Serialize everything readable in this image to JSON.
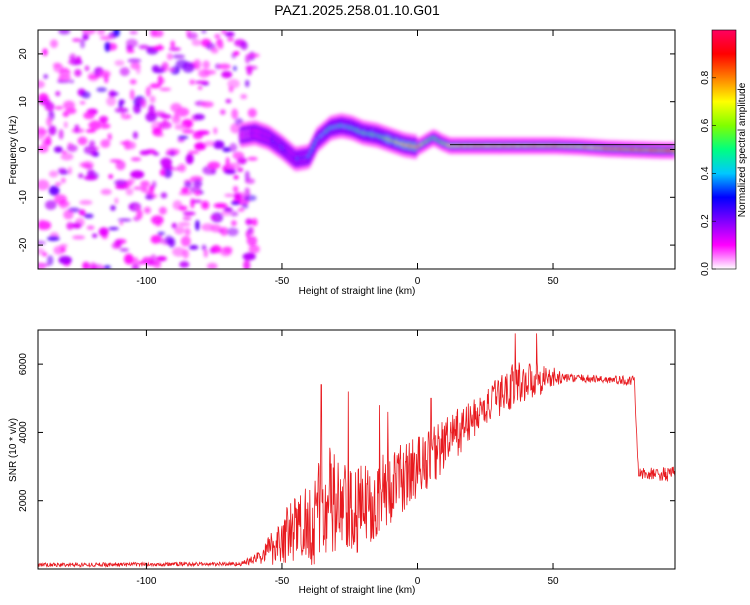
{
  "title": "PAZ1.2025.258.01.10.G01",
  "chart_data": [
    {
      "type": "heatmap",
      "xlabel": "Height of straight line (km)",
      "ylabel": "Frequency (Hz)",
      "xlim": [
        -140,
        95
      ],
      "ylim": [
        -25,
        25
      ],
      "xticks": [
        -100,
        -50,
        0,
        50
      ],
      "xtick_labels": [
        "-100",
        "-50",
        "0",
        "50"
      ],
      "yticks": [
        -20,
        -10,
        0,
        10,
        20
      ],
      "ytick_labels": [
        "-20",
        "-10",
        "0",
        "10",
        "20"
      ],
      "noise_region": [
        -140,
        -60
      ],
      "ridge": [
        {
          "x": -65,
          "f": 3.0,
          "a": 0.15
        },
        {
          "x": -60,
          "f": 3.5,
          "a": 0.2
        },
        {
          "x": -55,
          "f": 2.5,
          "a": 0.25
        },
        {
          "x": -50,
          "f": 0.5,
          "a": 0.3
        },
        {
          "x": -45,
          "f": -2.0,
          "a": 0.3
        },
        {
          "x": -40,
          "f": -1.5,
          "a": 0.35
        },
        {
          "x": -37,
          "f": 2.0,
          "a": 0.4
        },
        {
          "x": -32,
          "f": 4.5,
          "a": 0.45
        },
        {
          "x": -28,
          "f": 5.0,
          "a": 0.45
        },
        {
          "x": -24,
          "f": 4.5,
          "a": 0.45
        },
        {
          "x": -20,
          "f": 3.5,
          "a": 0.5
        },
        {
          "x": -15,
          "f": 3.0,
          "a": 0.5
        },
        {
          "x": -10,
          "f": 2.0,
          "a": 0.6
        },
        {
          "x": -5,
          "f": 1.0,
          "a": 0.75
        },
        {
          "x": 0,
          "f": 0.5,
          "a": 0.8
        },
        {
          "x": 3,
          "f": 1.5,
          "a": 0.6
        },
        {
          "x": 6,
          "f": 2.5,
          "a": 0.5
        },
        {
          "x": 9,
          "f": 1.5,
          "a": 0.6
        },
        {
          "x": 12,
          "f": 0.8,
          "a": 0.7
        },
        {
          "x": 20,
          "f": 0.8,
          "a": 0.75
        },
        {
          "x": 30,
          "f": 0.8,
          "a": 0.75
        },
        {
          "x": 40,
          "f": 0.8,
          "a": 0.75
        },
        {
          "x": 50,
          "f": 0.8,
          "a": 0.75
        },
        {
          "x": 60,
          "f": 0.6,
          "a": 0.7
        },
        {
          "x": 70,
          "f": 0.2,
          "a": 0.8
        },
        {
          "x": 80,
          "f": 0.0,
          "a": 0.85
        },
        {
          "x": 90,
          "f": -0.2,
          "a": 0.85
        }
      ],
      "line_f": 1.0,
      "colorbar": {
        "label": "Normalized spectral amplitude",
        "range": [
          0,
          1
        ],
        "ticks": [
          0.0,
          0.2,
          0.4,
          0.6,
          0.8
        ],
        "tick_labels": [
          "0.0",
          "0.2",
          "0.4",
          "0.6",
          "0.8"
        ],
        "stops": [
          "#ffffff",
          "#ff00ff",
          "#8000ff",
          "#0000ff",
          "#00c8ff",
          "#00ff80",
          "#80ff00",
          "#ffff00",
          "#ff8000",
          "#ff0000",
          "#ff0060"
        ]
      }
    },
    {
      "type": "line",
      "xlabel": "Height of straight line (km)",
      "ylabel": "SNR (10 * v/v)",
      "xlim": [
        -140,
        95
      ],
      "ylim": [
        0,
        7000
      ],
      "xticks": [
        -100,
        -50,
        0,
        50
      ],
      "xtick_labels": [
        "-100",
        "-50",
        "0",
        "50"
      ],
      "yticks": [
        2000,
        4000,
        6000
      ],
      "ytick_labels": [
        "2000",
        "4000",
        "6000"
      ],
      "color": "#e8191e",
      "envelope": [
        {
          "x": -140,
          "mean": 120,
          "amp": 60
        },
        {
          "x": -65,
          "mean": 150,
          "amp": 60
        },
        {
          "x": -58,
          "mean": 350,
          "amp": 200
        },
        {
          "x": -50,
          "mean": 900,
          "amp": 800
        },
        {
          "x": -40,
          "mean": 1400,
          "amp": 1300
        },
        {
          "x": -32,
          "mean": 1900,
          "amp": 1800
        },
        {
          "x": -25,
          "mean": 1500,
          "amp": 1400
        },
        {
          "x": -15,
          "mean": 2100,
          "amp": 1200
        },
        {
          "x": -5,
          "mean": 2700,
          "amp": 1000
        },
        {
          "x": 5,
          "mean": 3300,
          "amp": 900
        },
        {
          "x": 15,
          "mean": 4000,
          "amp": 700
        },
        {
          "x": 25,
          "mean": 4700,
          "amp": 500
        },
        {
          "x": 35,
          "mean": 5400,
          "amp": 700
        },
        {
          "x": 45,
          "mean": 5600,
          "amp": 500
        },
        {
          "x": 55,
          "mean": 5600,
          "amp": 120
        },
        {
          "x": 70,
          "mean": 5550,
          "amp": 120
        },
        {
          "x": 80,
          "mean": 5500,
          "amp": 150
        },
        {
          "x": 81.5,
          "mean": 2800,
          "amp": 150
        },
        {
          "x": 95,
          "mean": 2750,
          "amp": 250
        }
      ],
      "spikes": [
        {
          "x": -35.5,
          "y": 5400
        },
        {
          "x": -25.5,
          "y": 5200
        },
        {
          "x": -14,
          "y": 4800
        },
        {
          "x": -11,
          "y": 4600
        },
        {
          "x": 5,
          "y": 5000
        },
        {
          "x": 36,
          "y": 6900
        },
        {
          "x": 44,
          "y": 6900
        }
      ]
    }
  ]
}
